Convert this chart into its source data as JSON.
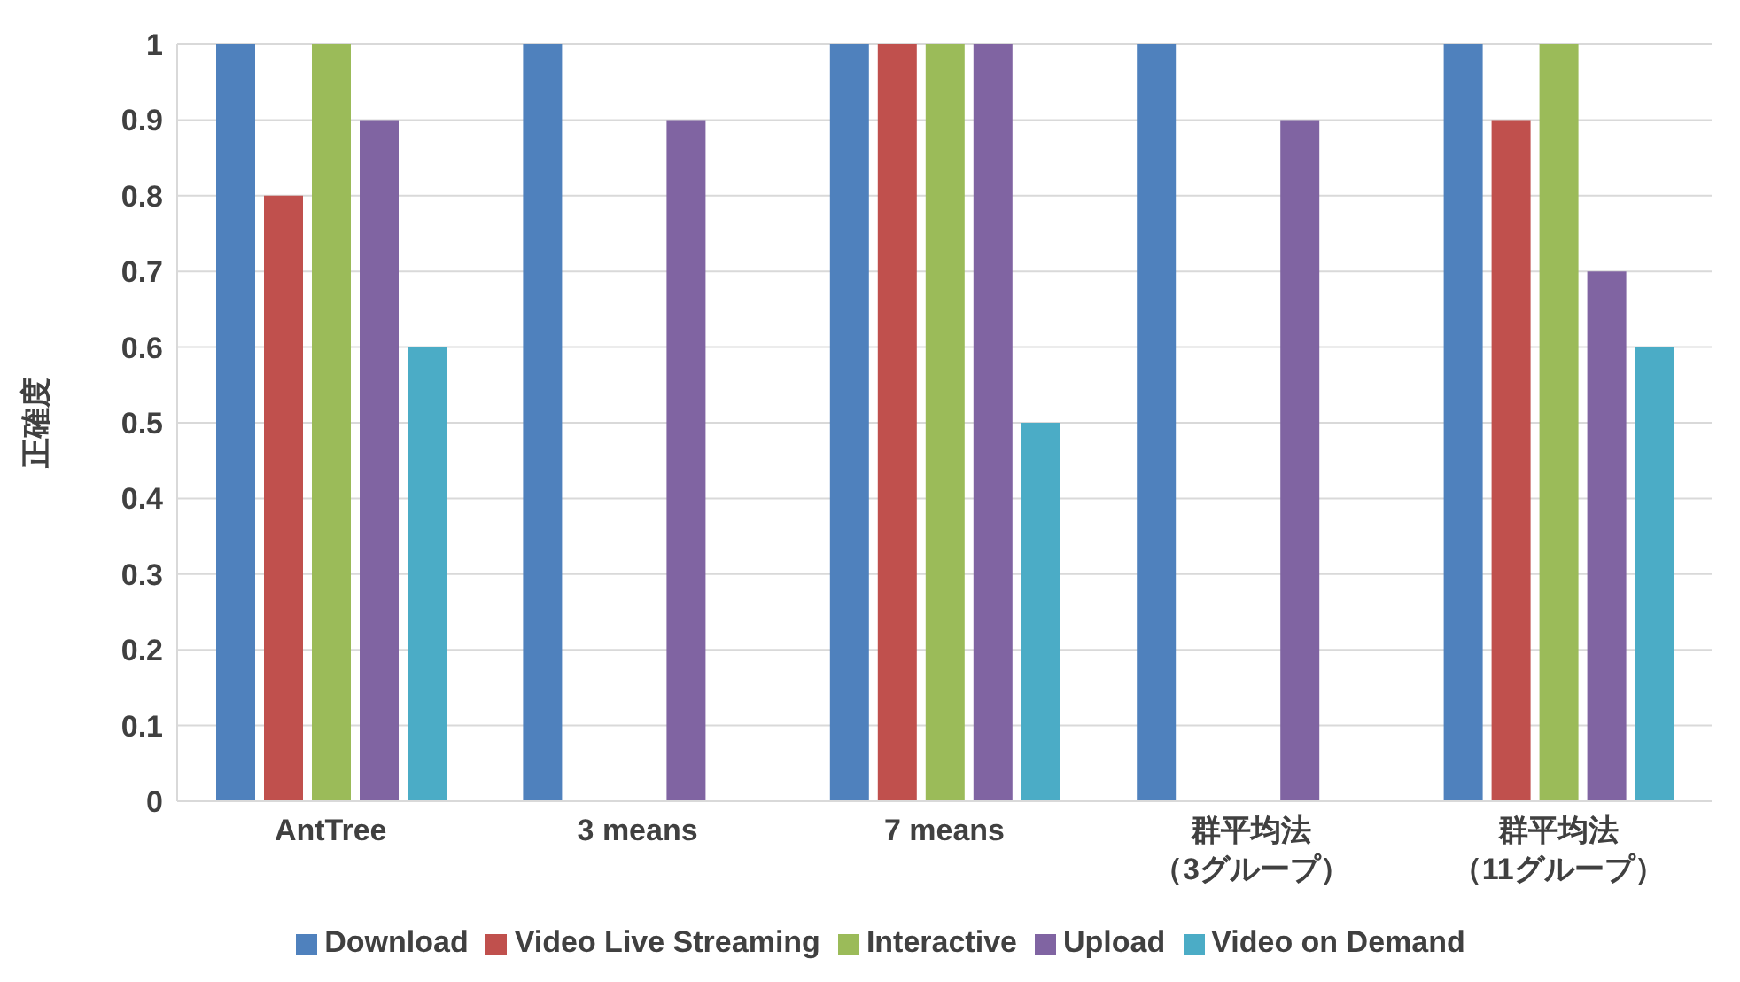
{
  "chart_data": {
    "type": "bar",
    "ylabel": "正確度",
    "categories": [
      "AntTree",
      "3 means",
      "7 means",
      "群平均法（3グループ）",
      "群平均法（11グループ）"
    ],
    "series": [
      {
        "name": "Download",
        "color": "#4f81bd",
        "values": [
          1,
          1,
          1,
          1,
          1
        ]
      },
      {
        "name": "Video Live Streaming",
        "color": "#c0504d",
        "values": [
          0.8,
          0,
          1,
          0,
          0.9
        ]
      },
      {
        "name": "Interactive",
        "color": "#9bbb59",
        "values": [
          1,
          0,
          1,
          0,
          1
        ]
      },
      {
        "name": "Upload",
        "color": "#8064a2",
        "values": [
          0.9,
          0.9,
          1,
          0.9,
          0.7
        ]
      },
      {
        "name": "Video on Demand",
        "color": "#4bacc6",
        "values": [
          0.6,
          0,
          0.5,
          0,
          0.6
        ]
      }
    ],
    "ylim": [
      0,
      1
    ],
    "yticks": [
      0,
      0.1,
      0.2,
      0.3,
      0.4,
      0.5,
      0.6,
      0.7,
      0.8,
      0.9,
      1
    ],
    "grid": "y",
    "legend": "bottom"
  }
}
